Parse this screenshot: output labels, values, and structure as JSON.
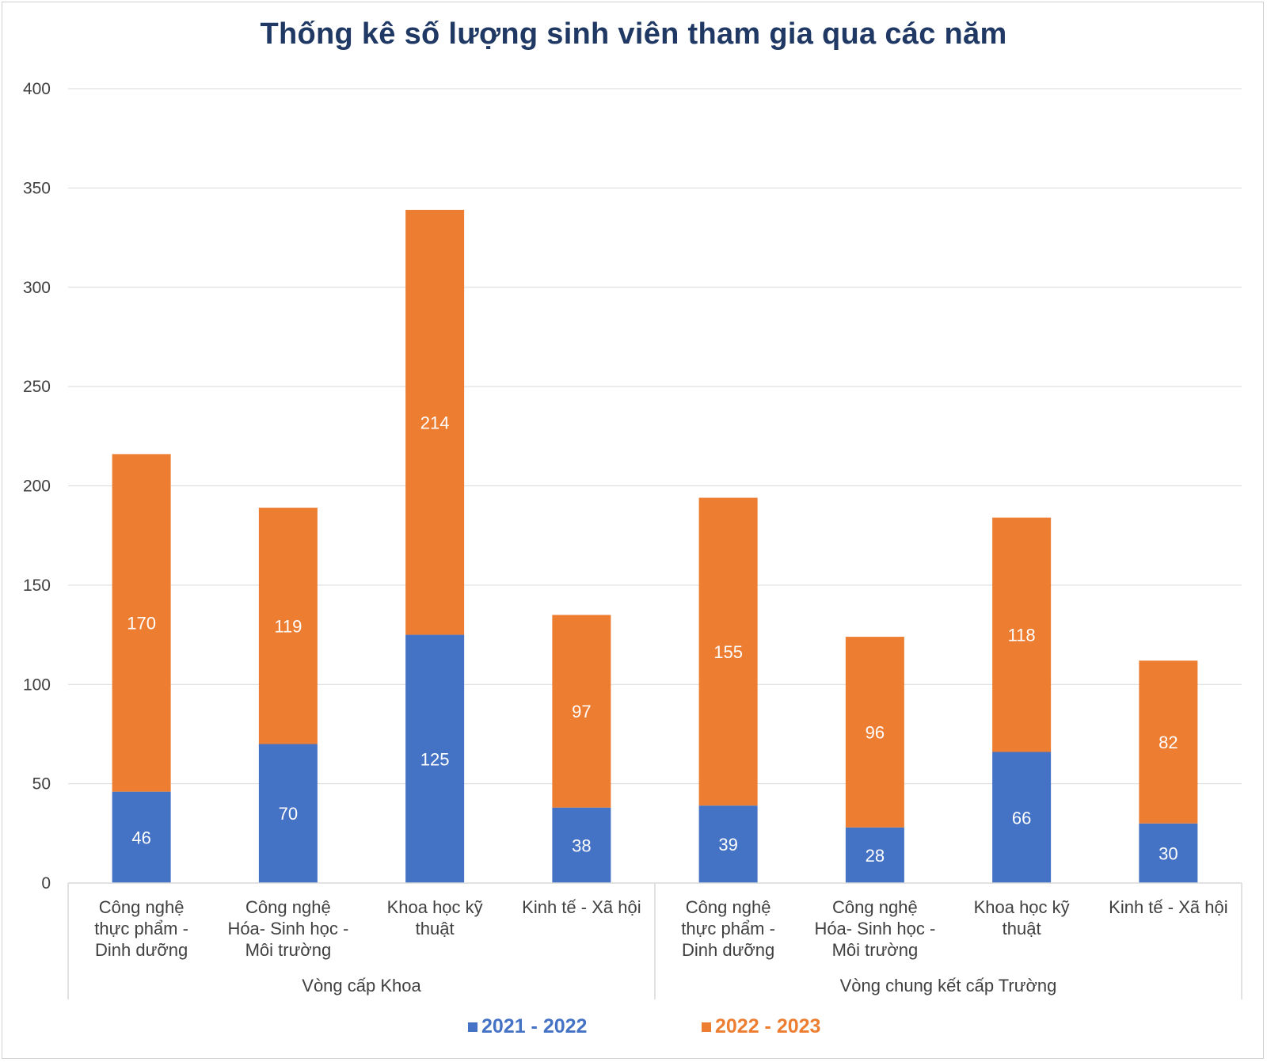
{
  "chart_data": {
    "type": "bar",
    "stacked": true,
    "title": "Thống kê số lượng sinh viên tham gia qua các năm",
    "xlabel": "",
    "ylabel": "",
    "ylim": [
      0,
      400
    ],
    "yticks": [
      "0",
      "50",
      "100",
      "150",
      "200",
      "250",
      "300",
      "350",
      "400"
    ],
    "grid": true,
    "legend_position": "bottom",
    "groups": [
      {
        "name": "Vòng cấp Khoa",
        "categories": [
          [
            "Công nghệ",
            "thực phẩm -",
            "Dinh dưỡng"
          ],
          [
            "Công nghệ",
            "Hóa- Sinh học -",
            "Môi trường"
          ],
          [
            "Khoa học kỹ",
            "thuật"
          ],
          [
            "Kinh tế - Xã hội"
          ]
        ]
      },
      {
        "name": "Vòng chung kết cấp Trường",
        "categories": [
          [
            "Công nghệ",
            "thực phẩm -",
            "Dinh dưỡng"
          ],
          [
            "Công nghệ",
            "Hóa- Sinh học -",
            "Môi trường"
          ],
          [
            "Khoa học kỹ",
            "thuật"
          ],
          [
            "Kinh tế - Xã hội"
          ]
        ]
      }
    ],
    "series": [
      {
        "name": "2021 - 2022",
        "color": "#4472c4",
        "values": [
          46,
          70,
          125,
          38,
          39,
          28,
          66,
          30
        ]
      },
      {
        "name": "2022 - 2023",
        "color": "#ed7d31",
        "values": [
          170,
          119,
          214,
          97,
          155,
          96,
          118,
          82
        ]
      }
    ]
  }
}
